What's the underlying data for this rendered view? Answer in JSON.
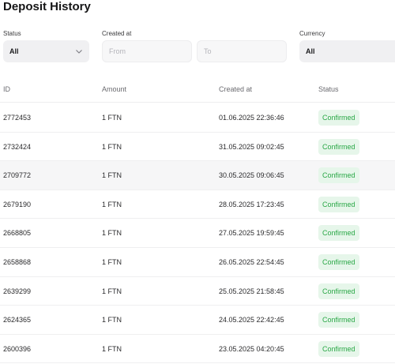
{
  "page": {
    "title": "Deposit History"
  },
  "filters": {
    "status": {
      "label": "Status",
      "value": "All"
    },
    "created_at": {
      "label": "Created at",
      "from_placeholder": "From",
      "to_placeholder": "To"
    },
    "currency": {
      "label": "Currency",
      "value": "All"
    }
  },
  "table": {
    "headers": {
      "id": "ID",
      "amount": "Amount",
      "created_at": "Created at",
      "status": "Status"
    },
    "rows": [
      {
        "id": "2772453",
        "amount": "1 FTN",
        "created_at": "01.06.2025 22:36:46",
        "status": "Confirmed"
      },
      {
        "id": "2732424",
        "amount": "1 FTN",
        "created_at": "31.05.2025 09:02:45",
        "status": "Confirmed"
      },
      {
        "id": "2709772",
        "amount": "1 FTN",
        "created_at": "30.05.2025 09:06:45",
        "status": "Confirmed"
      },
      {
        "id": "2679190",
        "amount": "1 FTN",
        "created_at": "28.05.2025 17:23:45",
        "status": "Confirmed"
      },
      {
        "id": "2668805",
        "amount": "1 FTN",
        "created_at": "27.05.2025 19:59:45",
        "status": "Confirmed"
      },
      {
        "id": "2658868",
        "amount": "1 FTN",
        "created_at": "26.05.2025 22:54:45",
        "status": "Confirmed"
      },
      {
        "id": "2639299",
        "amount": "1 FTN",
        "created_at": "25.05.2025 21:58:45",
        "status": "Confirmed"
      },
      {
        "id": "2624365",
        "amount": "1 FTN",
        "created_at": "24.05.2025 22:42:45",
        "status": "Confirmed"
      },
      {
        "id": "2600396",
        "amount": "1 FTN",
        "created_at": "23.05.2025 04:20:45",
        "status": "Confirmed"
      }
    ]
  },
  "colors": {
    "confirmed_text": "#28a745",
    "confirmed_bg": "#e6f6ea"
  },
  "icons": {
    "status_dropdown": "chevron-down-icon"
  }
}
